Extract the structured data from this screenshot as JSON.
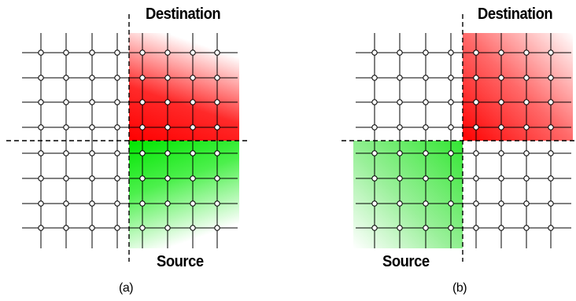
{
  "panels": [
    {
      "id": "a",
      "caption": "(a)",
      "destination_label": "Destination",
      "source_label": "Source",
      "destination_color": "#ff0000",
      "source_color": "#00e600"
    },
    {
      "id": "b",
      "caption": "(b)",
      "destination_label": "Destination",
      "source_label": "Source",
      "destination_color": "#ff0000",
      "source_color": "#00e600"
    }
  ],
  "grid": {
    "line_color": "#000000",
    "node_fill": "#ffffff",
    "divider_style": "dashed"
  }
}
